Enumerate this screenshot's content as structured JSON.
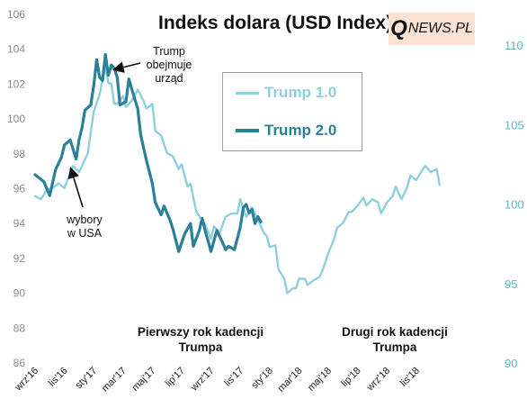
{
  "chart_data": {
    "type": "line",
    "title": "Indeks dolara (USD Index)",
    "brand": {
      "q": "Q",
      "rest": "NEWS.PL"
    },
    "left_axis": {
      "ylim": [
        86,
        106
      ],
      "ticks": [
        86,
        88,
        90,
        92,
        94,
        96,
        98,
        100,
        102,
        104,
        106
      ],
      "series": "Trump 2.0"
    },
    "right_axis": {
      "ylim": [
        90,
        112
      ],
      "ticks": [
        90,
        95,
        100,
        105,
        110
      ],
      "series": "Trump 1.0",
      "color": "#5fb6c6"
    },
    "x_ticks": [
      "wrz'16",
      "lis'16",
      "sty'17",
      "mar'17",
      "maj'17",
      "lip'17",
      "wrz'17",
      "lis'17",
      "sty'18",
      "mar'18",
      "maj'18",
      "lip'18",
      "wrz'18",
      "lis'18"
    ],
    "legend_position": "top-center",
    "series": [
      {
        "name": "Trump 1.0",
        "color": "#8ecfdd",
        "axis": "right",
        "points": [
          [
            0,
            100.5
          ],
          [
            0.2,
            100.3
          ],
          [
            0.4,
            100.9
          ],
          [
            0.6,
            101.0
          ],
          [
            0.8,
            101.3
          ],
          [
            1.0,
            101.0
          ],
          [
            1.1,
            101.5
          ],
          [
            1.3,
            102.4
          ],
          [
            1.5,
            102.0
          ],
          [
            1.6,
            102.4
          ],
          [
            1.8,
            103.2
          ],
          [
            1.9,
            104.5
          ],
          [
            2.0,
            105.8
          ],
          [
            2.2,
            106.9
          ],
          [
            2.3,
            107.8
          ],
          [
            2.4,
            108.6
          ],
          [
            2.5,
            107.6
          ],
          [
            2.6,
            107.6
          ],
          [
            2.7,
            106.3
          ],
          [
            2.8,
            106.3
          ],
          [
            3.0,
            106.8
          ],
          [
            3.1,
            106.1
          ],
          [
            3.3,
            106.5
          ],
          [
            3.5,
            107.2
          ],
          [
            3.7,
            106.5
          ],
          [
            3.8,
            106.0
          ],
          [
            4.0,
            106.3
          ],
          [
            4.1,
            104.6
          ],
          [
            4.3,
            104.3
          ],
          [
            4.5,
            103.2
          ],
          [
            4.7,
            103.0
          ],
          [
            4.9,
            102.2
          ],
          [
            5.0,
            102.5
          ],
          [
            5.2,
            101.1
          ],
          [
            5.3,
            101.3
          ],
          [
            5.5,
            99.5
          ],
          [
            5.7,
            99.0
          ],
          [
            5.8,
            98.7
          ],
          [
            6.0,
            97.8
          ],
          [
            6.1,
            98.6
          ],
          [
            6.3,
            98.2
          ],
          [
            6.5,
            99.2
          ],
          [
            6.7,
            99.4
          ],
          [
            6.9,
            99.4
          ],
          [
            7.0,
            100.3
          ],
          [
            7.2,
            99.2
          ],
          [
            7.4,
            99.8
          ],
          [
            7.6,
            99.0
          ],
          [
            7.8,
            98.2
          ],
          [
            7.9,
            98.0
          ],
          [
            8.0,
            97.3
          ],
          [
            8.2,
            97.4
          ],
          [
            8.3,
            95.9
          ],
          [
            8.5,
            95.3
          ],
          [
            8.6,
            94.4
          ],
          [
            8.8,
            94.7
          ],
          [
            8.9,
            94.7
          ],
          [
            9.0,
            95.3
          ],
          [
            9.2,
            95.3
          ],
          [
            9.3,
            94.9
          ],
          [
            9.5,
            95.2
          ],
          [
            9.7,
            95.4
          ],
          [
            9.8,
            95.8
          ],
          [
            10.0,
            96.9
          ],
          [
            10.2,
            97.8
          ],
          [
            10.3,
            98.5
          ],
          [
            10.5,
            98.8
          ],
          [
            10.7,
            99.5
          ],
          [
            10.8,
            99.5
          ],
          [
            11.0,
            99.9
          ],
          [
            11.2,
            100.4
          ],
          [
            11.3,
            99.9
          ],
          [
            11.5,
            100.3
          ],
          [
            11.7,
            100.1
          ],
          [
            11.8,
            99.4
          ],
          [
            12.0,
            100.1
          ],
          [
            12.2,
            100.5
          ],
          [
            12.3,
            101.1
          ],
          [
            12.5,
            100.3
          ],
          [
            12.7,
            101.1
          ],
          [
            12.8,
            101.8
          ],
          [
            13.0,
            101.5
          ],
          [
            13.2,
            102.1
          ],
          [
            13.3,
            102.4
          ],
          [
            13.5,
            102.0
          ],
          [
            13.7,
            102.2
          ],
          [
            13.8,
            101.2
          ]
        ]
      },
      {
        "name": "Trump 2.0",
        "color": "#2a7f99",
        "axis": "left",
        "points": [
          [
            0,
            96.8
          ],
          [
            0.3,
            96.4
          ],
          [
            0.5,
            95.6
          ],
          [
            0.7,
            97.1
          ],
          [
            0.9,
            97.8
          ],
          [
            1.0,
            98.5
          ],
          [
            1.2,
            98.8
          ],
          [
            1.4,
            97.7
          ],
          [
            1.5,
            98.8
          ],
          [
            1.6,
            99.5
          ],
          [
            1.7,
            100.5
          ],
          [
            1.9,
            100.8
          ],
          [
            2.0,
            101.9
          ],
          [
            2.1,
            103.4
          ],
          [
            2.2,
            102.4
          ],
          [
            2.3,
            102.2
          ],
          [
            2.4,
            103.7
          ],
          [
            2.5,
            102.5
          ],
          [
            2.6,
            103.1
          ],
          [
            2.7,
            102.9
          ],
          [
            2.8,
            102.4
          ],
          [
            2.9,
            100.8
          ],
          [
            3.1,
            101.0
          ],
          [
            3.2,
            102.3
          ],
          [
            3.3,
            101.7
          ],
          [
            3.5,
            100.6
          ],
          [
            3.6,
            99.1
          ],
          [
            3.8,
            97.6
          ],
          [
            4.0,
            96.3
          ],
          [
            4.1,
            95.2
          ],
          [
            4.3,
            94.5
          ],
          [
            4.4,
            95.0
          ],
          [
            4.6,
            94.2
          ],
          [
            4.7,
            93.7
          ],
          [
            4.9,
            92.4
          ],
          [
            5.1,
            93.4
          ],
          [
            5.3,
            94.0
          ],
          [
            5.4,
            92.7
          ],
          [
            5.6,
            93.6
          ],
          [
            5.7,
            94.3
          ],
          [
            5.8,
            93.6
          ],
          [
            6.0,
            92.4
          ],
          [
            6.2,
            93.6
          ],
          [
            6.4,
            92.9
          ],
          [
            6.5,
            92.5
          ],
          [
            6.6,
            92.7
          ],
          [
            6.8,
            92.5
          ],
          [
            7.0,
            93.8
          ],
          [
            7.1,
            94.9
          ],
          [
            7.2,
            95.1
          ],
          [
            7.3,
            94.6
          ],
          [
            7.4,
            94.8
          ],
          [
            7.5,
            94.0
          ],
          [
            7.6,
            94.4
          ],
          [
            7.7,
            94.1
          ]
        ]
      }
    ],
    "annotations": [
      {
        "text": "Trump obejmuje urząd",
        "lines": [
          "Trump",
          "obejmuje",
          "urząd"
        ],
        "at": [
          "Trump 2.0",
          2.4
        ]
      },
      {
        "text": "wybory w USA",
        "lines": [
          "wybory",
          "w USA"
        ],
        "at": [
          "Trump 1.0",
          1.6
        ]
      }
    ],
    "period_labels": {
      "first": [
        "Pierwszy rok kadencji",
        "Trumpa"
      ],
      "second": [
        "Drugi rok kadencji",
        "Trumpa"
      ]
    }
  }
}
